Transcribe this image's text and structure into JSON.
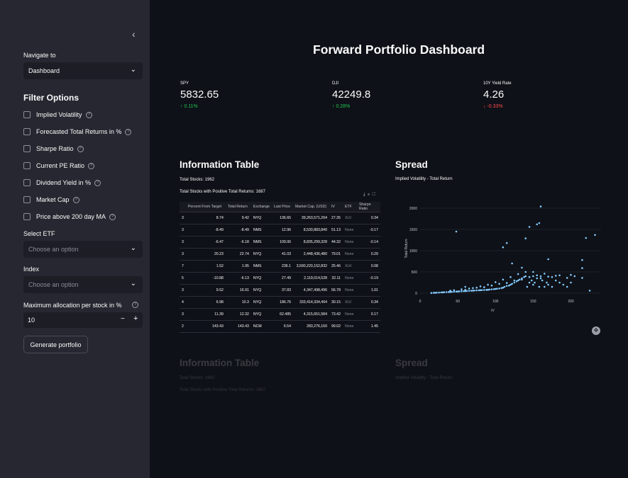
{
  "sidebar": {
    "collapse_icon": "‹",
    "navigate_label": "Navigate to",
    "navigate_value": "Dashboard",
    "filter_title": "Filter Options",
    "filters": [
      "Implied Volatility",
      "Forecasted Total Returns in %",
      "Sharpe Ratio",
      "Current PE Ratio",
      "Dividend Yield in %",
      "Market Cap",
      "Price above 200 day MA"
    ],
    "etf_label": "Select ETF",
    "etf_placeholder": "Choose an option",
    "index_label": "Index",
    "index_placeholder": "Choose an option",
    "max_alloc_label": "Maximum allocation per stock in %",
    "max_alloc_value": "10",
    "minus": "−",
    "plus": "+",
    "generate_label": "Generate portfolio"
  },
  "main": {
    "title": "Forward Portfolio Dashboard",
    "metrics": [
      {
        "label": "SPY",
        "value": "5832.65",
        "delta": "↑ 0.11%",
        "trend": "up"
      },
      {
        "label": "DJI",
        "value": "42249.8",
        "delta": "↑ 0.28%",
        "trend": "up"
      },
      {
        "label": "10Y Yield Rate",
        "value": "4.26",
        "delta": "↓ -0.33%",
        "trend": "down"
      }
    ],
    "info_title": "Information Table",
    "total_stocks": "Total Stocks: 1962",
    "positive_returns": "Total Stocks with Positive Total Returns: 1687",
    "spread_title": "Spread",
    "chart_title": "Implied Volatility - Total Return"
  },
  "table": {
    "headers": [
      "",
      "Percent From Target",
      "Total Return",
      "Exchange",
      "Last Price",
      "Market Cap. (USD)",
      "IV",
      "ETF",
      "Sharpe Ratio"
    ],
    "rows": [
      [
        "3",
        "8.74",
        "9.42",
        "NYQ",
        "136.65",
        "39,263,571,264",
        "27.35",
        "XLV",
        "0.34"
      ],
      [
        "3",
        "-8.49",
        "-8.49",
        "NMS",
        "12.96",
        "8,530,883,840",
        "51.13",
        "None",
        "-0.17"
      ],
      [
        "3",
        "-6.47",
        "-6.18",
        "NMS",
        "109.06",
        "8,835,299,328",
        "44.32",
        "None",
        "-0.14"
      ],
      [
        "3",
        "20.23",
        "22.74",
        "NYQ",
        "41.03",
        "2,448,436,480",
        "79.01",
        "None",
        "0.29"
      ],
      [
        "7",
        "1.52",
        "1.95",
        "NMS",
        "236.1",
        "3,590,220,152,832",
        "25.46",
        "XLK",
        "0.08"
      ],
      [
        "5",
        "-10.88",
        "-6.13",
        "NYQ",
        "27.49",
        "2,119,014,528",
        "32.11",
        "None",
        "-0.19"
      ],
      [
        "3",
        "9.52",
        "16.91",
        "NYQ",
        "37.83",
        "4,347,498,496",
        "56.78",
        "None",
        "1.01"
      ],
      [
        "4",
        "6.98",
        "10.3",
        "NYQ",
        "186.76",
        "333,414,334,464",
        "30.15",
        "XLV",
        "0.34"
      ],
      [
        "3",
        "11.39",
        "12.32",
        "NYQ",
        "62.485",
        "4,315,651,584",
        "73.42",
        "None",
        "0.17"
      ],
      [
        "2",
        "143.43",
        "143.43",
        "NCM",
        "6.54",
        "283,276,160",
        "99.02",
        "None",
        "1.45"
      ]
    ]
  },
  "chart_data": {
    "type": "scatter",
    "title": "Implied Volatility - Total Return",
    "xlabel": "IV",
    "ylabel": "Total Return",
    "xlim": [
      0,
      240
    ],
    "ylim": [
      0,
      2100
    ],
    "x_ticks": [
      0,
      50,
      100,
      150,
      200
    ],
    "y_ticks": [
      0,
      500,
      1000,
      1500,
      2000
    ],
    "point_color": "#83c9ff",
    "points": [
      [
        15,
        5
      ],
      [
        18,
        8
      ],
      [
        20,
        10
      ],
      [
        22,
        12
      ],
      [
        25,
        15
      ],
      [
        28,
        18
      ],
      [
        30,
        20
      ],
      [
        32,
        22
      ],
      [
        35,
        25
      ],
      [
        38,
        28
      ],
      [
        40,
        30
      ],
      [
        42,
        32
      ],
      [
        45,
        35
      ],
      [
        48,
        38
      ],
      [
        50,
        40
      ],
      [
        52,
        42
      ],
      [
        55,
        45
      ],
      [
        58,
        48
      ],
      [
        60,
        50
      ],
      [
        62,
        52
      ],
      [
        65,
        55
      ],
      [
        68,
        58
      ],
      [
        70,
        60
      ],
      [
        72,
        62
      ],
      [
        75,
        65
      ],
      [
        78,
        68
      ],
      [
        80,
        70
      ],
      [
        82,
        72
      ],
      [
        85,
        75
      ],
      [
        88,
        78
      ],
      [
        90,
        80
      ],
      [
        92,
        85
      ],
      [
        95,
        90
      ],
      [
        98,
        95
      ],
      [
        100,
        100
      ],
      [
        102,
        105
      ],
      [
        105,
        110
      ],
      [
        108,
        120
      ],
      [
        110,
        130
      ],
      [
        112,
        150
      ],
      [
        115,
        170
      ],
      [
        118,
        180
      ],
      [
        120,
        200
      ],
      [
        122,
        220
      ],
      [
        125,
        250
      ],
      [
        128,
        280
      ],
      [
        130,
        300
      ],
      [
        132,
        320
      ],
      [
        135,
        350
      ],
      [
        138,
        380
      ],
      [
        140,
        400
      ],
      [
        142,
        150
      ],
      [
        145,
        250
      ],
      [
        148,
        300
      ],
      [
        150,
        200
      ],
      [
        152,
        250
      ],
      [
        155,
        350
      ],
      [
        158,
        150
      ],
      [
        160,
        400
      ],
      [
        162,
        300
      ],
      [
        165,
        150
      ],
      [
        168,
        250
      ],
      [
        170,
        200
      ],
      [
        175,
        150
      ],
      [
        180,
        300
      ],
      [
        185,
        250
      ],
      [
        190,
        200
      ],
      [
        195,
        150
      ],
      [
        200,
        250
      ],
      [
        60,
        80
      ],
      [
        70,
        120
      ],
      [
        80,
        160
      ],
      [
        90,
        200
      ],
      [
        100,
        260
      ],
      [
        110,
        320
      ],
      [
        120,
        380
      ],
      [
        130,
        450
      ],
      [
        140,
        500
      ],
      [
        150,
        400
      ],
      [
        160,
        350
      ],
      [
        48,
        1450
      ],
      [
        110,
        1080
      ],
      [
        115,
        1180
      ],
      [
        140,
        1290
      ],
      [
        145,
        1560
      ],
      [
        155,
        1620
      ],
      [
        158,
        1650
      ],
      [
        160,
        2040
      ],
      [
        215,
        780
      ],
      [
        220,
        1300
      ],
      [
        232,
        1370
      ],
      [
        215,
        590
      ],
      [
        170,
        390
      ],
      [
        180,
        410
      ],
      [
        200,
        430
      ],
      [
        122,
        700
      ],
      [
        135,
        600
      ],
      [
        150,
        500
      ],
      [
        170,
        800
      ],
      [
        60,
        150
      ],
      [
        40,
        60
      ],
      [
        45,
        70
      ],
      [
        55,
        90
      ],
      [
        65,
        110
      ],
      [
        75,
        130
      ],
      [
        85,
        140
      ],
      [
        95,
        180
      ],
      [
        105,
        220
      ],
      [
        115,
        240
      ],
      [
        125,
        300
      ],
      [
        135,
        320
      ],
      [
        145,
        380
      ],
      [
        155,
        420
      ],
      [
        165,
        460
      ],
      [
        175,
        380
      ],
      [
        185,
        420
      ],
      [
        195,
        360
      ],
      [
        205,
        400
      ],
      [
        215,
        360
      ],
      [
        225,
        60
      ]
    ]
  }
}
